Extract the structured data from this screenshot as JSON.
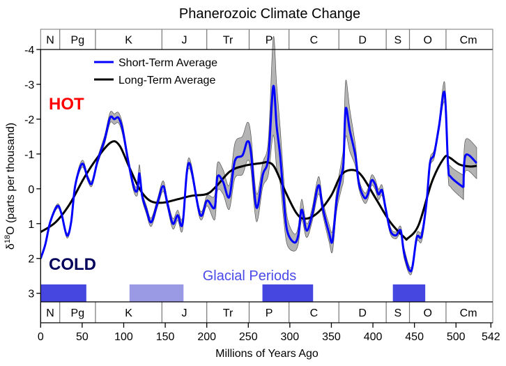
{
  "chart_data": {
    "type": "line",
    "title": "Phanerozoic Climate Change",
    "xlabel": "Millions of Years Ago",
    "ylabel_prefix": "δ",
    "ylabel_sup": "18",
    "ylabel_suffix": "O (parts per thousand)",
    "xlim": [
      0,
      542
    ],
    "ylim": [
      -4,
      3.26
    ],
    "y_inverted": true,
    "grid": false,
    "legend_placement": "top-left",
    "x_ticks": [
      0,
      50,
      100,
      150,
      200,
      250,
      300,
      350,
      400,
      450,
      500,
      542
    ],
    "y_ticks": [
      -4,
      -3,
      -2,
      -1,
      0,
      1,
      2,
      3
    ],
    "annotations": {
      "hot": "HOT",
      "cold": "COLD",
      "glacial": "Glacial Periods"
    },
    "colors": {
      "short": "#0000ff",
      "long": "#000000",
      "band": "#b4b4b4",
      "hot": "#ff0000",
      "cold": "#00005a",
      "glacial_text": "#4a4ae8",
      "glacial_major": "#4646e0",
      "glacial_minor": "#9a9ae4"
    },
    "periods": [
      {
        "label": "N",
        "start": 0,
        "end": 23
      },
      {
        "label": "Pg",
        "start": 23,
        "end": 66
      },
      {
        "label": "K",
        "start": 66,
        "end": 146
      },
      {
        "label": "J",
        "start": 146,
        "end": 200
      },
      {
        "label": "Tr",
        "start": 200,
        "end": 251
      },
      {
        "label": "P",
        "start": 251,
        "end": 299
      },
      {
        "label": "C",
        "start": 299,
        "end": 359
      },
      {
        "label": "D",
        "start": 359,
        "end": 416
      },
      {
        "label": "S",
        "start": 416,
        "end": 444
      },
      {
        "label": "O",
        "start": 444,
        "end": 488
      },
      {
        "label": "Cm",
        "start": 488,
        "end": 542
      }
    ],
    "glacial_periods": [
      {
        "start": 0,
        "end": 55,
        "intensity": "major"
      },
      {
        "start": 107,
        "end": 172,
        "intensity": "minor"
      },
      {
        "start": 267,
        "end": 328,
        "intensity": "major"
      },
      {
        "start": 424,
        "end": 463,
        "intensity": "major"
      }
    ],
    "series": [
      {
        "name": "Short-Term Average",
        "segments": [
          {
            "x": [
              0,
              5.6,
              11.5,
              19.9,
              24.9,
              31.6,
              36.7,
              41.7,
              50.1,
              56.8,
              61.8,
              68.5,
              76.9,
              83.6,
              88.7,
              93.7,
              98.7,
              105.4,
              112.2,
              116.4,
              118.9,
              122.2,
              127.3,
              133.1,
              140.7,
              147.4,
              152.4,
              159.1,
              165,
              170.9,
              178.4,
              191.9,
              200.3,
              209.5,
              212.8,
              219.6,
              227.1,
              233.8,
              243,
              248.9,
              253.1,
              259.8,
              267.4,
              274.1,
              280,
              284.1,
              288.4,
              292.5,
              296.7,
              305.1,
              310.1,
              314.3,
              320.2,
              326.9,
              334.5,
              339.5,
              347.1,
              351.3,
              356.3,
              362.2,
              364.7,
              367.2,
              372.3,
              379,
              383.2,
              389.9,
              394.1,
              398.3,
              402.5,
              406.7,
              410.9,
              415.1,
              421,
              427.6,
              433.5,
              437.7,
              446.1,
              452.8,
              458.6,
              464.5,
              468.7,
              473.7,
              479.6,
              486.3,
              490.5,
              493.9,
              509
            ],
            "y": [
              2.0,
              1.6,
              0.96,
              0.5,
              0.7,
              1.34,
              0.96,
              -0.1,
              -0.72,
              -0.3,
              -0.16,
              -0.8,
              -1.4,
              -2.04,
              -2.0,
              -2.04,
              -1.7,
              -0.8,
              -0.04,
              0.04,
              -0.44,
              0.2,
              0.6,
              0.96,
              0.4,
              -0.08,
              0.4,
              1.0,
              0.76,
              1.0,
              -0.74,
              0.74,
              0.34,
              0.54,
              -0.34,
              -0.2,
              0.24,
              -0.8,
              -0.96,
              -1.36,
              -1.06,
              0.54,
              -0.4,
              -0.9,
              -2.94,
              -1.8,
              -0.94,
              0.26,
              1.2,
              1.54,
              1.34,
              0.6,
              1.2,
              0.74,
              -0.1,
              0.54,
              1.26,
              1.5,
              0.34,
              -0.4,
              -0.8,
              -2.3,
              -1.66,
              -0.94,
              -0.14,
              0.26,
              0.14,
              -0.24,
              -0.14,
              0.16,
              0.04,
              0.54,
              1.2,
              1.34,
              1.2,
              1.86,
              2.36,
              1.4,
              1.36,
              0.4,
              -0.74,
              -1.0,
              -1.8,
              -2.76,
              -0.66,
              -0.34,
              -0.04
            ],
            "band_halfwidth": [
              0.05,
              0.05,
              0.06,
              0.06,
              0.06,
              0.07,
              0.07,
              0.08,
              0.1,
              0.08,
              0.08,
              0.1,
              0.12,
              0.15,
              0.15,
              0.15,
              0.15,
              0.12,
              0.12,
              0.15,
              0.25,
              0.12,
              0.12,
              0.12,
              0.12,
              0.15,
              0.12,
              0.15,
              0.15,
              0.18,
              0.15,
              0.12,
              0.15,
              0.35,
              0.4,
              0.35,
              0.35,
              0.5,
              0.55,
              0.55,
              0.5,
              0.4,
              0.35,
              0.5,
              1.4,
              1.2,
              0.8,
              0.6,
              0.4,
              0.25,
              0.25,
              0.3,
              0.2,
              0.2,
              0.25,
              0.2,
              0.25,
              0.3,
              0.3,
              0.4,
              0.5,
              0.8,
              0.6,
              0.3,
              0.15,
              0.15,
              0.15,
              0.15,
              0.15,
              0.15,
              0.15,
              0.12,
              0.1,
              0.1,
              0.12,
              0.15,
              0.1,
              0.12,
              0.15,
              0.15,
              0.12,
              0.12,
              0.15,
              0.3,
              0.3,
              0.3,
              0.35
            ]
          },
          {
            "x": [
              509,
              511.5,
              524.9
            ],
            "y": [
              -0.04,
              -0.96,
              -0.74
            ],
            "band_halfwidth": [
              0.35,
              0.45,
              0.45
            ]
          }
        ]
      },
      {
        "name": "Long-Term Average",
        "x": [
          0,
          18,
          35,
          52,
          68.5,
          85,
          95,
          106,
          119,
          131.5,
          146.5,
          165,
          182,
          200,
          211,
          228,
          245,
          266,
          274,
          282,
          295,
          308,
          318,
          333,
          349.6,
          362,
          376,
          387,
          404,
          421,
          438,
          442,
          455,
          471,
          485.5,
          492,
          504,
          517,
          525
        ],
        "y": [
          1.24,
          0.96,
          0.44,
          -0.3,
          -0.9,
          -1.34,
          -1.24,
          -0.66,
          0.0,
          0.34,
          0.4,
          0.3,
          0.2,
          0.15,
          -0.06,
          -0.5,
          -0.66,
          -0.74,
          -0.76,
          -0.6,
          0.1,
          0.7,
          0.86,
          0.7,
          0.2,
          -0.4,
          -0.54,
          -0.36,
          0.3,
          0.96,
          1.4,
          1.42,
          1.04,
          -0.2,
          -0.88,
          -0.9,
          -0.7,
          -0.64,
          -0.66
        ]
      }
    ]
  }
}
